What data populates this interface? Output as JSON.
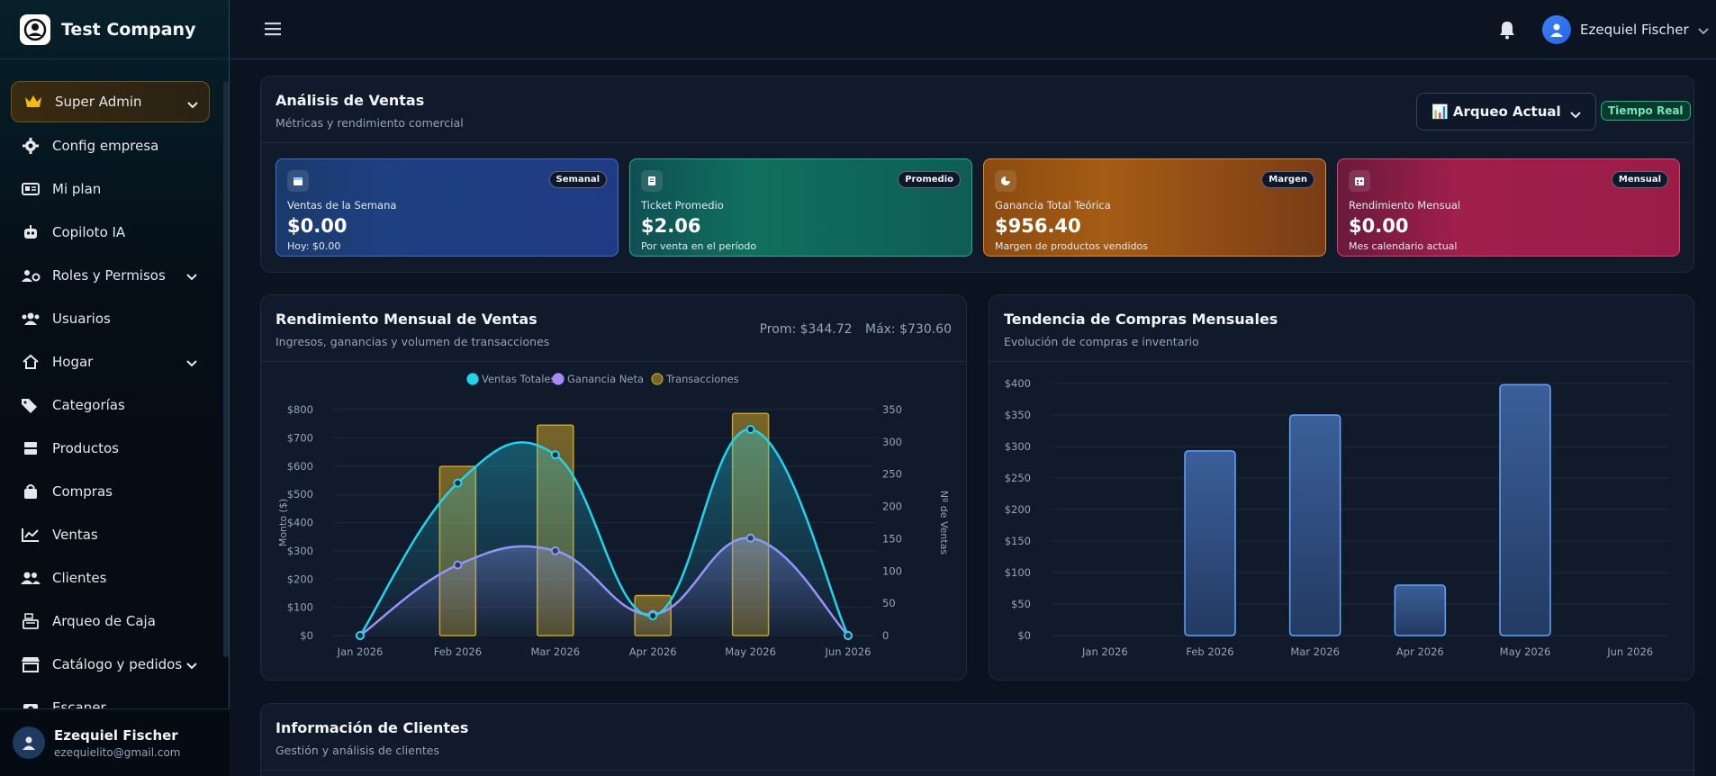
{
  "brand": {
    "name": "Test Company"
  },
  "sidebar": {
    "items": [
      {
        "label": "Super Admin",
        "icon": "crown-icon"
      },
      {
        "label": "Config empresa",
        "icon": "gear-icon"
      },
      {
        "label": "Mi plan",
        "icon": "id-card-icon"
      },
      {
        "label": "Copiloto IA",
        "icon": "robot-icon"
      },
      {
        "label": "Roles y Permisos",
        "icon": "users-cog-icon"
      },
      {
        "label": "Usuarios",
        "icon": "users-icon"
      },
      {
        "label": "Hogar",
        "icon": "home-icon"
      },
      {
        "label": "Categorías",
        "icon": "tags-icon"
      },
      {
        "label": "Productos",
        "icon": "boxes-icon"
      },
      {
        "label": "Compras",
        "icon": "bag-icon"
      },
      {
        "label": "Ventas",
        "icon": "line-chart-icon"
      },
      {
        "label": "Clientes",
        "icon": "user-group-icon"
      },
      {
        "label": "Arqueo de Caja",
        "icon": "cash-register-icon"
      },
      {
        "label": "Catálogo y pedidos",
        "icon": "store-icon"
      },
      {
        "label": "Escaner",
        "icon": "camera-icon"
      }
    ],
    "user": {
      "name": "Ezequiel Fischer",
      "email": "ezequielito@gmail.com"
    }
  },
  "topbar": {
    "user_name": "Ezequiel Fischer"
  },
  "sales": {
    "title": "Análisis de Ventas",
    "subtitle": "Métricas y rendimiento comercial",
    "select_value": "📊 Arqueo Actual",
    "realtime_badge": "Tiempo Real",
    "kpis": [
      {
        "badge": "Semanal",
        "label": "Ventas de la Semana",
        "value": "$0.00",
        "sub": "Hoy: $0.00"
      },
      {
        "badge": "Promedio",
        "label": "Ticket Promedio",
        "value": "$2.06",
        "sub": "Por venta en el período"
      },
      {
        "badge": "Margen",
        "label": "Ganancia Total Teórica",
        "value": "$956.40",
        "sub": "Margen de productos vendidos"
      },
      {
        "badge": "Mensual",
        "label": "Rendimiento Mensual",
        "value": "$0.00",
        "sub": "Mes calendario actual"
      }
    ]
  },
  "monthly": {
    "title": "Rendimiento Mensual de Ventas",
    "subtitle": "Ingresos, ganancias y volumen de transacciones",
    "prom": "Prom: $344.72",
    "max": "Máx: $730.60"
  },
  "purchases": {
    "title": "Tendencia de Compras Mensuales",
    "subtitle": "Evolución de compras e inventario"
  },
  "clients": {
    "title": "Información de Clientes",
    "subtitle": "Gestión y análisis de clientes"
  },
  "chart_data": [
    {
      "type": "line",
      "categories": [
        "Jan 2026",
        "Feb 2026",
        "Mar 2026",
        "Apr 2026",
        "May 2026",
        "Jun 2026"
      ],
      "series": [
        {
          "name": "Ventas Totales",
          "type": "line",
          "axis": "left",
          "values": [
            0,
            540,
            640,
            70,
            730,
            0
          ],
          "color": "#22d3ee"
        },
        {
          "name": "Ganancia Neta",
          "type": "line",
          "axis": "left",
          "values": [
            0,
            250,
            300,
            75,
            345,
            0
          ],
          "color": "#a78bfa"
        },
        {
          "name": "Transacciones",
          "type": "bar",
          "axis": "right",
          "values": [
            0,
            262,
            326,
            62,
            344,
            0
          ],
          "color": "#c9a227"
        }
      ],
      "ylabel": "Monto ($)",
      "y2label": "Nº de Ventas",
      "ylim": [
        0,
        800
      ],
      "y2lim": [
        0,
        350
      ],
      "yticks": [
        "$0",
        "$100",
        "$200",
        "$300",
        "$400",
        "$500",
        "$600",
        "$700",
        "$800"
      ],
      "y2ticks": [
        "0",
        "50",
        "100",
        "150",
        "200",
        "250",
        "300",
        "350"
      ],
      "legend": "top",
      "grid": true
    },
    {
      "type": "bar",
      "categories": [
        "Jan 2026",
        "Feb 2026",
        "Mar 2026",
        "Apr 2026",
        "May 2026",
        "Jun 2026"
      ],
      "values": [
        0,
        293,
        350,
        80,
        398,
        0
      ],
      "ylim": [
        0,
        400
      ],
      "yticks": [
        "$0",
        "$50",
        "$100",
        "$150",
        "$200",
        "$250",
        "$300",
        "$350",
        "$400"
      ],
      "color": "#3b5f9a",
      "grid": true
    }
  ]
}
